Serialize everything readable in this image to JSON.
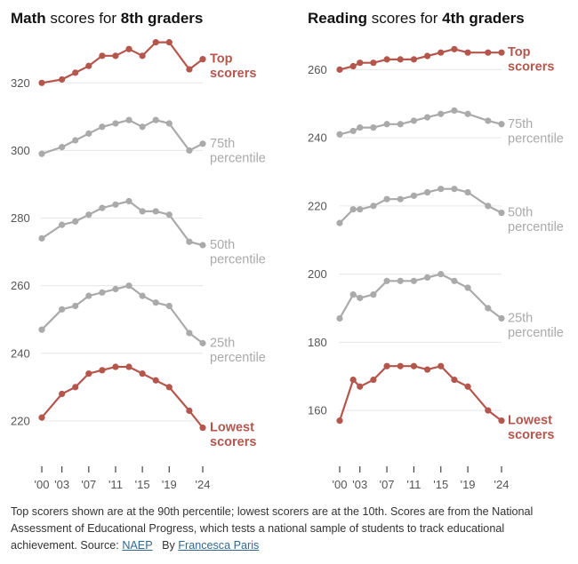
{
  "colors": {
    "highlight": "#b5564d",
    "mid": "#aaaaaa",
    "grid": "#e6e6e6",
    "axis_text": "#555555"
  },
  "chart_data": [
    {
      "type": "line",
      "title_parts": {
        "bold1": "Math",
        "normal": " scores for ",
        "bold2": "8th graders"
      },
      "x": [
        2000,
        2003,
        2005,
        2007,
        2009,
        2011,
        2013,
        2015,
        2017,
        2019,
        2022,
        2024
      ],
      "x_tick_labels": [
        "'00",
        "'03",
        "'07",
        "'11",
        "'15",
        "'19",
        "'24"
      ],
      "x_tick_years": [
        2000,
        2003,
        2007,
        2011,
        2015,
        2019,
        2024
      ],
      "ylim": [
        210,
        334
      ],
      "y_ticks": [
        220,
        240,
        260,
        280,
        300,
        320
      ],
      "series": [
        {
          "name": "Top scorers",
          "label_lines": [
            "Top",
            "scorers"
          ],
          "highlight": true,
          "values": [
            320,
            321,
            323,
            325,
            328,
            328,
            330,
            328,
            332,
            332,
            324,
            327
          ]
        },
        {
          "name": "75th percentile",
          "label_lines": [
            "75th",
            "percentile"
          ],
          "highlight": false,
          "values": [
            299,
            301,
            303,
            305,
            307,
            308,
            309,
            307,
            309,
            308,
            300,
            302
          ]
        },
        {
          "name": "50th percentile",
          "label_lines": [
            "50th",
            "percentile"
          ],
          "highlight": false,
          "values": [
            274,
            278,
            279,
            281,
            283,
            284,
            285,
            282,
            282,
            281,
            273,
            272
          ]
        },
        {
          "name": "25th percentile",
          "label_lines": [
            "25th",
            "percentile"
          ],
          "highlight": false,
          "values": [
            247,
            253,
            254,
            257,
            258,
            259,
            260,
            257,
            255,
            254,
            246,
            243
          ]
        },
        {
          "name": "Lowest scorers",
          "label_lines": [
            "Lowest",
            "scorers"
          ],
          "highlight": true,
          "values": [
            221,
            228,
            230,
            234,
            235,
            236,
            236,
            234,
            232,
            230,
            223,
            218
          ]
        }
      ]
    },
    {
      "type": "line",
      "title_parts": {
        "bold1": "Reading",
        "normal": " scores for ",
        "bold2": "4th graders"
      },
      "x": [
        2000,
        2002,
        2003,
        2005,
        2007,
        2009,
        2011,
        2013,
        2015,
        2017,
        2019,
        2022,
        2024
      ],
      "x_tick_labels": [
        "'00",
        "'03",
        "'07",
        "'11",
        "'15",
        "'19",
        "'24"
      ],
      "x_tick_years": [
        2000,
        2003,
        2007,
        2011,
        2015,
        2019,
        2024
      ],
      "ylim": [
        147,
        270
      ],
      "y_ticks": [
        160,
        180,
        200,
        220,
        240,
        260
      ],
      "series": [
        {
          "name": "Top scorers",
          "label_lines": [
            "Top",
            "scorers"
          ],
          "highlight": true,
          "values": [
            260,
            261,
            262,
            262,
            263,
            263,
            263,
            264,
            265,
            266,
            265,
            265,
            265
          ]
        },
        {
          "name": "75th percentile",
          "label_lines": [
            "75th",
            "percentile"
          ],
          "highlight": false,
          "values": [
            241,
            242,
            243,
            243,
            244,
            244,
            245,
            246,
            247,
            248,
            247,
            245,
            244
          ]
        },
        {
          "name": "50th percentile",
          "label_lines": [
            "50th",
            "percentile"
          ],
          "highlight": false,
          "values": [
            215,
            219,
            219,
            220,
            222,
            222,
            223,
            224,
            225,
            225,
            224,
            220,
            218
          ]
        },
        {
          "name": "25th percentile",
          "label_lines": [
            "25th",
            "percentile"
          ],
          "highlight": false,
          "values": [
            187,
            194,
            193,
            194,
            198,
            198,
            198,
            199,
            200,
            198,
            196,
            190,
            187
          ]
        },
        {
          "name": "Lowest scorers",
          "label_lines": [
            "Lowest",
            "scorers"
          ],
          "highlight": true,
          "values": [
            157,
            169,
            167,
            169,
            173,
            173,
            173,
            172,
            173,
            169,
            167,
            160,
            157
          ]
        }
      ]
    }
  ],
  "caption": {
    "text": "Top scorers shown are at the 90th percentile; lowest scorers are at the 10th. Scores are from the National Assessment of Educational Progress, which tests a national sample of students to track educational achievement. Source: ",
    "source_link": "NAEP",
    "byline_prefix": "By ",
    "byline_link": "Francesca Paris"
  }
}
